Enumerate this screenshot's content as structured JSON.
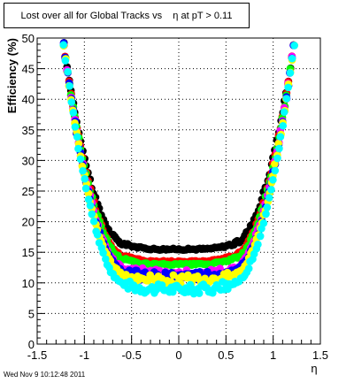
{
  "footer": "Wed Nov  9 10:12:48 2011",
  "chart_data": {
    "type": "scatter",
    "title": "Lost over all for Global Tracks vs    η at pT > 0.11",
    "xlabel": "η",
    "ylabel": "Efficiency (%)",
    "xlim": [
      -1.5,
      1.5
    ],
    "ylim": [
      0,
      50
    ],
    "x_ticks": [
      -1.5,
      -1,
      -0.5,
      0,
      0.5,
      1,
      1.5
    ],
    "y_ticks": [
      0,
      5,
      10,
      15,
      20,
      25,
      30,
      35,
      40,
      45,
      50
    ],
    "grid": true,
    "grid_style": "dotted",
    "marker": "filled-circle",
    "series": [
      {
        "color": "#000000",
        "minimum": 15.5
      },
      {
        "color": "#ff0000",
        "minimum": 13.5
      },
      {
        "color": "#00ff00",
        "minimum": 13.0
      },
      {
        "color": "#ff00ff",
        "minimum": 11.5
      },
      {
        "color": "#0000ff",
        "minimum": 11.0
      },
      {
        "color": "#ffff00",
        "minimum": 10.5
      },
      {
        "color": "#00ffff",
        "minimum": 9.0
      }
    ]
  }
}
